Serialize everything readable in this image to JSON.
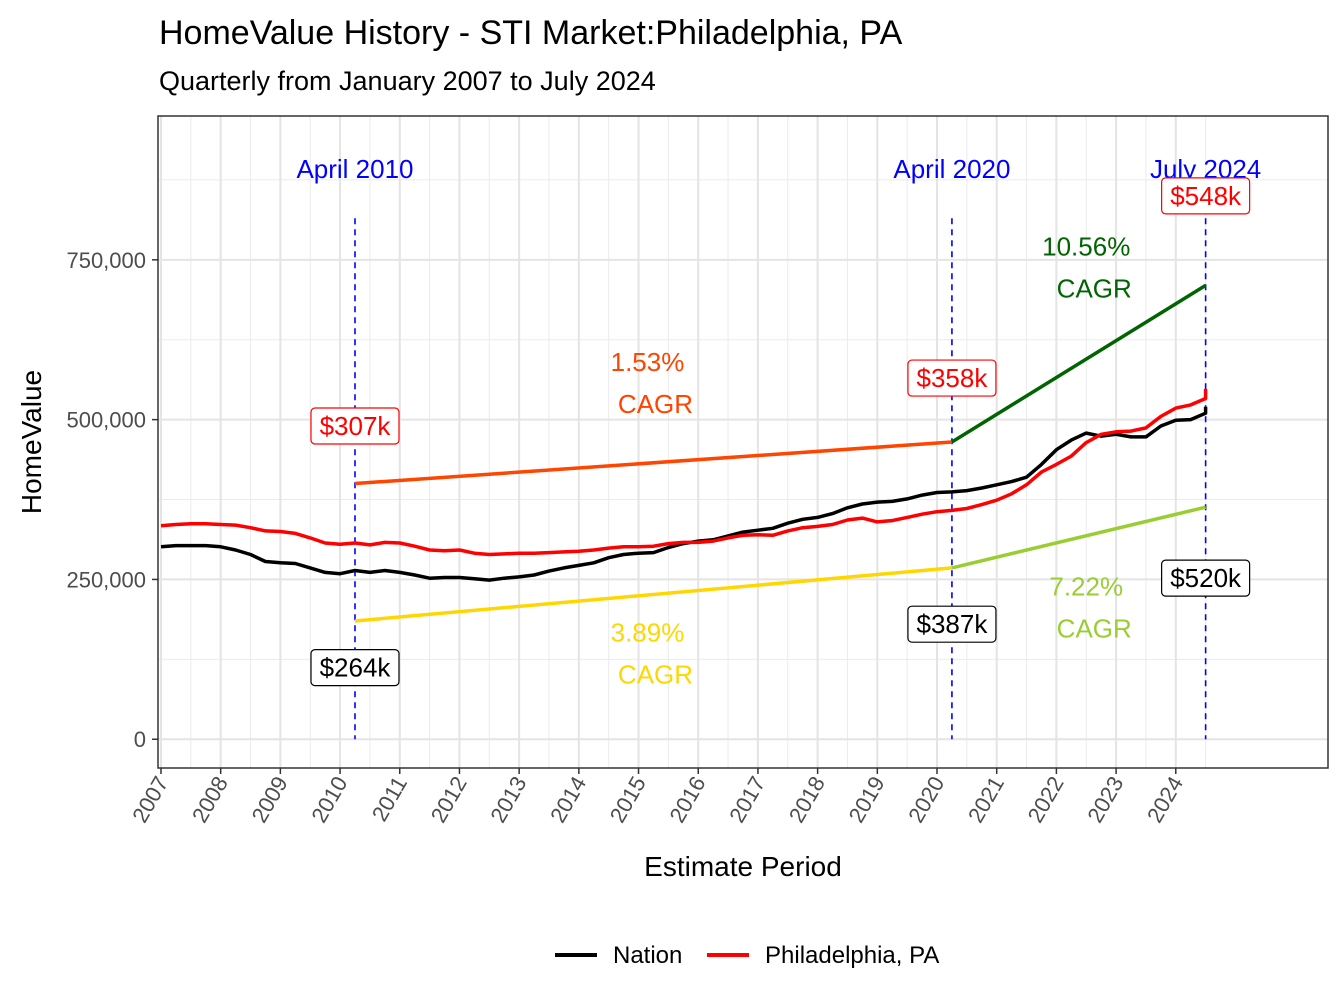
{
  "chart_data": {
    "type": "line",
    "title": "HomeValue History - STI Market:Philadelphia, PA",
    "subtitle": "Quarterly from January 2007 to July 2024",
    "xlabel": "Estimate Period",
    "ylabel": "HomeValue",
    "xlim": [
      2006.95,
      2026.55
    ],
    "ylim": [
      -45000,
      975000
    ],
    "y_ticks": [
      0,
      250000,
      500000,
      750000
    ],
    "y_tick_labels": [
      "0",
      "250,000",
      "500,000",
      "750,000"
    ],
    "x_ticks": [
      2007,
      2008,
      2009,
      2010,
      2011,
      2012,
      2013,
      2014,
      2015,
      2016,
      2017,
      2018,
      2019,
      2020,
      2021,
      2022,
      2023,
      2024
    ],
    "x_tick_labels": [
      "2007",
      "2008",
      "2009",
      "2010",
      "2011",
      "2012",
      "2013",
      "2014",
      "2015",
      "2016",
      "2017",
      "2018",
      "2019",
      "2020",
      "2021",
      "2022",
      "2023",
      "2024"
    ],
    "grid": true,
    "legend_position": "bottom",
    "series": [
      {
        "name": "Nation",
        "color": "#000000",
        "points": [
          [
            2007.0,
            301000
          ],
          [
            2007.25,
            303000
          ],
          [
            2007.5,
            303000
          ],
          [
            2007.75,
            303000
          ],
          [
            2008.0,
            301000
          ],
          [
            2008.25,
            296000
          ],
          [
            2008.5,
            289000
          ],
          [
            2008.75,
            278000
          ],
          [
            2009.0,
            276000
          ],
          [
            2009.25,
            275000
          ],
          [
            2009.5,
            268000
          ],
          [
            2009.75,
            261000
          ],
          [
            2010.0,
            259000
          ],
          [
            2010.25,
            264000
          ],
          [
            2010.5,
            261000
          ],
          [
            2010.75,
            264000
          ],
          [
            2011.0,
            261000
          ],
          [
            2011.25,
            257000
          ],
          [
            2011.5,
            252000
          ],
          [
            2011.75,
            253000
          ],
          [
            2012.0,
            253000
          ],
          [
            2012.25,
            251000
          ],
          [
            2012.5,
            249000
          ],
          [
            2012.75,
            252000
          ],
          [
            2013.0,
            254000
          ],
          [
            2013.25,
            257000
          ],
          [
            2013.5,
            263000
          ],
          [
            2013.75,
            268000
          ],
          [
            2014.0,
            272000
          ],
          [
            2014.25,
            276000
          ],
          [
            2014.5,
            284000
          ],
          [
            2014.75,
            289000
          ],
          [
            2015.0,
            291000
          ],
          [
            2015.25,
            292000
          ],
          [
            2015.5,
            300000
          ],
          [
            2015.75,
            306000
          ],
          [
            2016.0,
            310000
          ],
          [
            2016.25,
            312000
          ],
          [
            2016.5,
            318000
          ],
          [
            2016.75,
            324000
          ],
          [
            2017.0,
            327000
          ],
          [
            2017.25,
            330000
          ],
          [
            2017.5,
            338000
          ],
          [
            2017.75,
            344000
          ],
          [
            2018.0,
            347000
          ],
          [
            2018.25,
            353000
          ],
          [
            2018.5,
            362000
          ],
          [
            2018.75,
            368000
          ],
          [
            2019.0,
            371000
          ],
          [
            2019.25,
            372000
          ],
          [
            2019.5,
            376000
          ],
          [
            2019.75,
            382000
          ],
          [
            2020.0,
            386000
          ],
          [
            2020.25,
            387000
          ],
          [
            2020.5,
            389000
          ],
          [
            2020.75,
            393000
          ],
          [
            2021.0,
            398000
          ],
          [
            2021.25,
            403000
          ],
          [
            2021.5,
            410000
          ],
          [
            2021.75,
            430000
          ],
          [
            2022.0,
            453000
          ],
          [
            2022.25,
            468000
          ],
          [
            2022.5,
            479000
          ],
          [
            2022.75,
            474000
          ],
          [
            2023.0,
            477000
          ],
          [
            2023.25,
            473000
          ],
          [
            2023.5,
            473000
          ],
          [
            2023.75,
            490000
          ],
          [
            2024.0,
            499000
          ],
          [
            2024.25,
            500000
          ],
          [
            2024.5,
            510000
          ],
          [
            2024.5,
            520000
          ]
        ]
      },
      {
        "name": "Philadelphia, PA",
        "color": "#ff0000",
        "points": [
          [
            2007.0,
            334000
          ],
          [
            2007.25,
            336000
          ],
          [
            2007.5,
            337000
          ],
          [
            2007.75,
            337000
          ],
          [
            2008.0,
            336000
          ],
          [
            2008.25,
            335000
          ],
          [
            2008.5,
            331000
          ],
          [
            2008.75,
            326000
          ],
          [
            2009.0,
            325000
          ],
          [
            2009.25,
            322000
          ],
          [
            2009.5,
            315000
          ],
          [
            2009.75,
            307000
          ],
          [
            2010.0,
            305000
          ],
          [
            2010.25,
            307000
          ],
          [
            2010.5,
            304000
          ],
          [
            2010.75,
            308000
          ],
          [
            2011.0,
            307000
          ],
          [
            2011.25,
            302000
          ],
          [
            2011.5,
            296000
          ],
          [
            2011.75,
            295000
          ],
          [
            2012.0,
            296000
          ],
          [
            2012.25,
            291000
          ],
          [
            2012.5,
            289000
          ],
          [
            2012.75,
            290000
          ],
          [
            2013.0,
            291000
          ],
          [
            2013.25,
            291000
          ],
          [
            2013.5,
            292000
          ],
          [
            2013.75,
            293000
          ],
          [
            2014.0,
            294000
          ],
          [
            2014.25,
            296000
          ],
          [
            2014.5,
            299000
          ],
          [
            2014.75,
            301000
          ],
          [
            2015.0,
            301000
          ],
          [
            2015.25,
            302000
          ],
          [
            2015.5,
            306000
          ],
          [
            2015.75,
            308000
          ],
          [
            2016.0,
            308000
          ],
          [
            2016.25,
            310000
          ],
          [
            2016.5,
            315000
          ],
          [
            2016.75,
            319000
          ],
          [
            2017.0,
            320000
          ],
          [
            2017.25,
            319000
          ],
          [
            2017.5,
            326000
          ],
          [
            2017.75,
            331000
          ],
          [
            2018.0,
            333000
          ],
          [
            2018.25,
            336000
          ],
          [
            2018.5,
            343000
          ],
          [
            2018.75,
            346000
          ],
          [
            2019.0,
            340000
          ],
          [
            2019.25,
            342000
          ],
          [
            2019.5,
            347000
          ],
          [
            2019.75,
            352000
          ],
          [
            2020.0,
            356000
          ],
          [
            2020.25,
            358000
          ],
          [
            2020.5,
            361000
          ],
          [
            2020.75,
            367000
          ],
          [
            2021.0,
            374000
          ],
          [
            2021.25,
            384000
          ],
          [
            2021.5,
            398000
          ],
          [
            2021.75,
            418000
          ],
          [
            2022.0,
            430000
          ],
          [
            2022.25,
            443000
          ],
          [
            2022.5,
            464000
          ],
          [
            2022.75,
            477000
          ],
          [
            2023.0,
            481000
          ],
          [
            2023.25,
            482000
          ],
          [
            2023.5,
            487000
          ],
          [
            2023.75,
            505000
          ],
          [
            2024.0,
            518000
          ],
          [
            2024.25,
            523000
          ],
          [
            2024.5,
            533000
          ],
          [
            2024.5,
            548000
          ]
        ]
      }
    ],
    "cagr_lines": [
      {
        "color": "#ff4500",
        "from": [
          2010.25,
          400000
        ],
        "to": [
          2020.25,
          465000
        ]
      },
      {
        "color": "#ffd700",
        "from": [
          2010.25,
          185000
        ],
        "to": [
          2020.25,
          268000
        ]
      },
      {
        "color": "#006400",
        "from": [
          2020.25,
          465000
        ],
        "to": [
          2024.5,
          710000
        ]
      },
      {
        "color": "#9acd32",
        "from": [
          2020.25,
          268000
        ],
        "to": [
          2024.5,
          363000
        ]
      }
    ],
    "vlines": [
      {
        "x": 2010.25,
        "label": "April 2010",
        "color": "#0000ff"
      },
      {
        "x": 2020.25,
        "label": "April 2020",
        "color": "#0000ff"
      },
      {
        "x": 2024.5,
        "label": "July 2024",
        "color": "#0000ff"
      }
    ],
    "value_labels": [
      {
        "x": 2010.25,
        "y": 490000,
        "text": "$307k",
        "color": "#ff0000"
      },
      {
        "x": 2020.25,
        "y": 565000,
        "text": "$358k",
        "color": "#ff0000"
      },
      {
        "x": 2024.5,
        "y": 850000,
        "text": "$548k",
        "color": "#ff0000"
      },
      {
        "x": 2010.25,
        "y": 112000,
        "text": "$264k",
        "color": "#000000"
      },
      {
        "x": 2020.25,
        "y": 180000,
        "text": "$387k",
        "color": "#000000"
      },
      {
        "x": 2024.5,
        "y": 252000,
        "text": "$520k",
        "color": "#000000"
      }
    ],
    "cagr_annotations": [
      {
        "x": 2015.15,
        "y": 576000,
        "lines": [
          "1.53%",
          "CAGR"
        ],
        "color": "#ff4500"
      },
      {
        "x": 2015.15,
        "y": 153000,
        "lines": [
          "3.89%",
          "CAGR"
        ],
        "color": "#ffd700"
      },
      {
        "x": 2022.5,
        "y": 757000,
        "lines": [
          "10.56%",
          "CAGR"
        ],
        "color": "#006400"
      },
      {
        "x": 2022.5,
        "y": 225000,
        "lines": [
          "7.22%",
          "CAGR"
        ],
        "color": "#9acd32"
      }
    ]
  }
}
